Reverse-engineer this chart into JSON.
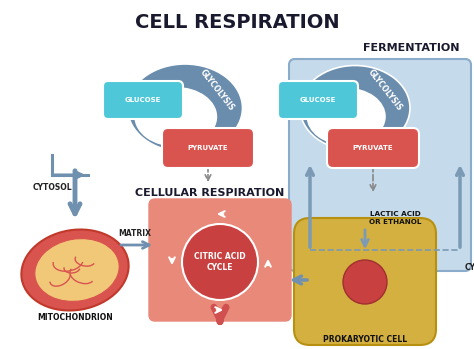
{
  "title": "CELL RESPIRATION",
  "title_fontsize": 14,
  "title_fontweight": "bold",
  "bg_color": "#ffffff",
  "fig_size": [
    4.74,
    3.49
  ],
  "colors": {
    "glucose_box": "#4ec8d8",
    "pyruvate_box": "#d9534f",
    "glycolysis_arc": "#6a8cad",
    "glycolysis_arc_dark": "#4a6a8a",
    "cytosol_arrow": "#7a9ab5",
    "citric_outer_bg": "#e8897a",
    "citric_inner": "#c94040",
    "mitochondrion_outer": "#d9534f",
    "mitochondrion_outer_border": "#c0392b",
    "mitochondrion_inner": "#f0c878",
    "mitochondrion_cristae": "#d9534f",
    "prokaryotic_outer": "#d4b040",
    "prokaryotic_outer_border": "#b89010",
    "prokaryotic_inner": "#c94040",
    "fermentation_box": "#c5daea",
    "fermentation_border": "#8aabca",
    "label_color": "#222222",
    "lactic_acid_arrow": "#7a9ab5",
    "down_arrow_pyruvate": "#999999",
    "down_arrow_citric": "#d9534f",
    "cytosol_arrow_color": "#7090b0"
  },
  "labels": {
    "glucose": "GLUCOSE",
    "glycolysis": "GLYCOLYSIS",
    "pyruvate": "PYRUVATE",
    "cytosol": "CYTOSOL",
    "matrix": "MATRIX",
    "cellular_respiration": "CELLULAR RESPIRATION",
    "citric_acid_cycle": "CITRIC ACID\nCYCLE",
    "mitochondrion": "MITOCHONDRION",
    "fermentation": "FERMENTATION",
    "lactic_acid": "LACTIC ACID\nOR ETHANOL",
    "cytosol2": "CYTOSOL",
    "prokaryotic_cell": "PROKARYOTIC CELL"
  }
}
